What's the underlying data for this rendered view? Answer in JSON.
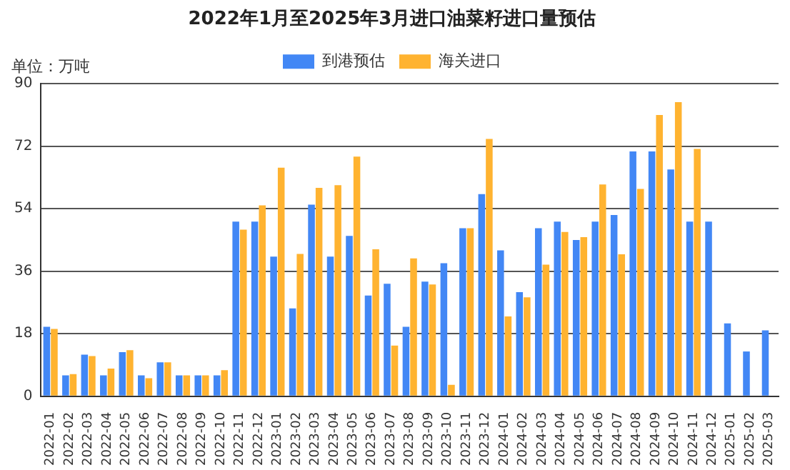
{
  "chart_data": {
    "type": "bar",
    "title": "2022年1月至2025年3月进口油菜籽进口量预估",
    "categories": [
      "2022-01",
      "2022-02",
      "2022-03",
      "2022-04",
      "2022-05",
      "2022-06",
      "2022-07",
      "2022-08",
      "2022-09",
      "2022-10",
      "2022-11",
      "2022-12",
      "2023-01",
      "2023-02",
      "2023-03",
      "2023-04",
      "2023-05",
      "2023-06",
      "2023-07",
      "2023-08",
      "2023-09",
      "2023-10",
      "2023-11",
      "2023-12",
      "2024-01",
      "2024-02",
      "2024-03",
      "2024-04",
      "2024-05",
      "2024-06",
      "2024-07",
      "2024-08",
      "2024-09",
      "2024-10",
      "2024-11",
      "2024-12",
      "2025-01",
      "2025-02",
      "2025-03"
    ],
    "series": [
      {
        "name": "到港预估",
        "color": "#4287f5",
        "values": [
          20,
          6,
          12,
          6,
          12.7,
          6,
          9.8,
          6,
          6,
          6,
          50.3,
          50.3,
          40.2,
          25.3,
          55.2,
          40.2,
          46.2,
          29,
          32.4,
          20,
          33,
          38.3,
          48.4,
          58.2,
          42,
          30,
          48.4,
          50.3,
          45,
          50.3,
          52.2,
          70.5,
          70.5,
          65.3,
          50.3,
          50.3,
          21,
          12.9,
          19
        ]
      },
      {
        "name": "海关进口",
        "color": "#ffb330",
        "values": [
          19.4,
          6.4,
          11.6,
          8,
          13.3,
          5.2,
          9.8,
          6,
          6,
          7.5,
          48,
          55,
          65.8,
          41,
          60,
          60.8,
          69,
          42.3,
          14.6,
          39.7,
          32.2,
          3.3,
          48.4,
          74.1,
          23,
          28.5,
          37.9,
          47.3,
          45.8,
          61,
          40.9,
          59.7,
          81,
          84.7,
          71.2,
          null,
          null,
          null,
          null
        ]
      }
    ],
    "ylim": [
      0,
      90
    ],
    "yticks": [
      0,
      18,
      36,
      54,
      72,
      90
    ],
    "grid": "y",
    "legend": "top",
    "annotations": [
      "单位：万吨"
    ]
  }
}
